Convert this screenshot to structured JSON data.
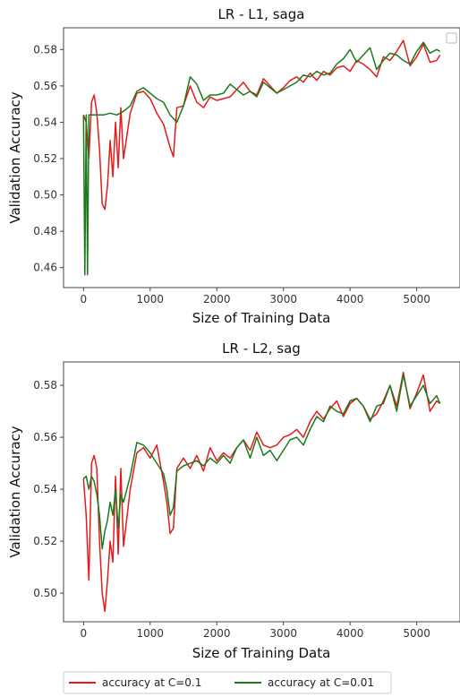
{
  "colors": {
    "series_c01": "#e41a1c",
    "series_c001": "#1b7a1b",
    "axis": "#444444"
  },
  "legend": {
    "placement": "bottom-left, below plots",
    "items": [
      {
        "label": "accuracy at C=0.1",
        "color": "#e41a1c"
      },
      {
        "label": "accuracy at C=0.01",
        "color": "#1b7a1b"
      }
    ]
  },
  "chart_data": [
    {
      "type": "line",
      "title": "LR - L1, saga",
      "xlabel": "Size of Training Data",
      "ylabel": "Validation Accuracy",
      "xlim": [
        -300,
        5650
      ],
      "ylim": [
        0.449,
        0.592
      ],
      "xticks": [
        0,
        1000,
        2000,
        3000,
        4000,
        5000
      ],
      "xtick_labels": [
        "0",
        "1000",
        "2000",
        "3000",
        "4000",
        "5000"
      ],
      "yticks": [
        0.46,
        0.48,
        0.5,
        0.52,
        0.54,
        0.56,
        0.58
      ],
      "ytick_labels": [
        "0.46",
        "0.48",
        "0.50",
        "0.52",
        "0.54",
        "0.56",
        "0.58"
      ],
      "grid": false,
      "has_empty_legend_box": true,
      "series": [
        {
          "name": "accuracy at C=0.1",
          "color": "#e41a1c",
          "x": [
            0,
            40,
            80,
            120,
            160,
            200,
            240,
            280,
            320,
            360,
            400,
            440,
            480,
            520,
            560,
            600,
            700,
            800,
            900,
            1000,
            1100,
            1200,
            1300,
            1350,
            1400,
            1500,
            1600,
            1700,
            1800,
            1900,
            2000,
            2100,
            2200,
            2300,
            2400,
            2500,
            2600,
            2700,
            2800,
            2900,
            3000,
            3100,
            3200,
            3300,
            3400,
            3500,
            3600,
            3700,
            3800,
            3900,
            4000,
            4100,
            4200,
            4300,
            4400,
            4500,
            4600,
            4700,
            4800,
            4900,
            5000,
            5100,
            5200,
            5300,
            5350
          ],
          "y": [
            0.544,
            0.54,
            0.52,
            0.551,
            0.555,
            0.545,
            0.525,
            0.495,
            0.492,
            0.505,
            0.53,
            0.51,
            0.54,
            0.515,
            0.548,
            0.52,
            0.545,
            0.556,
            0.557,
            0.553,
            0.545,
            0.539,
            0.526,
            0.521,
            0.548,
            0.549,
            0.56,
            0.551,
            0.548,
            0.554,
            0.552,
            0.553,
            0.554,
            0.558,
            0.562,
            0.557,
            0.555,
            0.564,
            0.56,
            0.556,
            0.559,
            0.563,
            0.565,
            0.562,
            0.567,
            0.563,
            0.568,
            0.566,
            0.57,
            0.571,
            0.568,
            0.574,
            0.572,
            0.569,
            0.565,
            0.576,
            0.574,
            0.579,
            0.585,
            0.571,
            0.576,
            0.583,
            0.573,
            0.574,
            0.577
          ]
        },
        {
          "name": "accuracy at C=0.01",
          "color": "#1b7a1b",
          "x": [
            0,
            20,
            40,
            60,
            80,
            100,
            140,
            200,
            300,
            400,
            500,
            600,
            700,
            800,
            900,
            1000,
            1100,
            1200,
            1300,
            1400,
            1500,
            1600,
            1700,
            1800,
            1900,
            2000,
            2100,
            2200,
            2300,
            2400,
            2500,
            2600,
            2700,
            2800,
            2900,
            3000,
            3100,
            3200,
            3300,
            3400,
            3500,
            3600,
            3700,
            3800,
            3900,
            4000,
            4100,
            4200,
            4300,
            4400,
            4500,
            4600,
            4700,
            4800,
            4900,
            5000,
            5100,
            5200,
            5300,
            5350
          ],
          "y": [
            0.544,
            0.456,
            0.544,
            0.456,
            0.544,
            0.544,
            0.544,
            0.544,
            0.544,
            0.545,
            0.544,
            0.546,
            0.549,
            0.557,
            0.559,
            0.556,
            0.553,
            0.551,
            0.544,
            0.54,
            0.549,
            0.565,
            0.561,
            0.552,
            0.555,
            0.555,
            0.556,
            0.561,
            0.558,
            0.555,
            0.557,
            0.554,
            0.562,
            0.559,
            0.556,
            0.558,
            0.56,
            0.562,
            0.566,
            0.565,
            0.568,
            0.566,
            0.567,
            0.572,
            0.575,
            0.58,
            0.573,
            0.577,
            0.581,
            0.569,
            0.574,
            0.578,
            0.577,
            0.574,
            0.572,
            0.579,
            0.584,
            0.578,
            0.58,
            0.579
          ]
        }
      ]
    },
    {
      "type": "line",
      "title": "LR - L2, sag",
      "xlabel": "Size of Training Data",
      "ylabel": "Validation Accuracy",
      "xlim": [
        -300,
        5650
      ],
      "ylim": [
        0.489,
        0.589
      ],
      "xticks": [
        0,
        1000,
        2000,
        3000,
        4000,
        5000
      ],
      "xtick_labels": [
        "0",
        "1000",
        "2000",
        "3000",
        "4000",
        "5000"
      ],
      "yticks": [
        0.5,
        0.52,
        0.54,
        0.56,
        0.58
      ],
      "ytick_labels": [
        "0.50",
        "0.52",
        "0.54",
        "0.56",
        "0.58"
      ],
      "grid": false,
      "series": [
        {
          "name": "accuracy at C=0.1",
          "color": "#e41a1c",
          "x": [
            0,
            40,
            80,
            120,
            160,
            200,
            240,
            280,
            320,
            360,
            400,
            440,
            480,
            520,
            560,
            600,
            700,
            800,
            900,
            1000,
            1100,
            1200,
            1250,
            1300,
            1350,
            1400,
            1500,
            1600,
            1700,
            1800,
            1900,
            2000,
            2100,
            2200,
            2300,
            2400,
            2500,
            2600,
            2700,
            2800,
            2900,
            3000,
            3100,
            3200,
            3300,
            3400,
            3500,
            3600,
            3700,
            3800,
            3900,
            4000,
            4100,
            4200,
            4300,
            4400,
            4500,
            4600,
            4700,
            4800,
            4900,
            5000,
            5100,
            5200,
            5300,
            5350
          ],
          "y": [
            0.544,
            0.53,
            0.505,
            0.55,
            0.553,
            0.548,
            0.52,
            0.5,
            0.493,
            0.505,
            0.52,
            0.512,
            0.545,
            0.515,
            0.548,
            0.518,
            0.54,
            0.554,
            0.556,
            0.552,
            0.557,
            0.543,
            0.535,
            0.523,
            0.525,
            0.548,
            0.552,
            0.548,
            0.553,
            0.547,
            0.556,
            0.551,
            0.554,
            0.552,
            0.556,
            0.559,
            0.555,
            0.562,
            0.557,
            0.556,
            0.557,
            0.56,
            0.561,
            0.563,
            0.56,
            0.566,
            0.57,
            0.567,
            0.571,
            0.574,
            0.568,
            0.573,
            0.575,
            0.572,
            0.567,
            0.569,
            0.574,
            0.58,
            0.572,
            0.585,
            0.571,
            0.577,
            0.584,
            0.57,
            0.574,
            0.573
          ]
        },
        {
          "name": "accuracy at C=0.01",
          "color": "#1b7a1b",
          "x": [
            0,
            40,
            80,
            120,
            160,
            200,
            240,
            280,
            320,
            360,
            400,
            440,
            480,
            520,
            560,
            600,
            700,
            800,
            900,
            1000,
            1100,
            1200,
            1250,
            1300,
            1350,
            1400,
            1500,
            1600,
            1700,
            1800,
            1900,
            2000,
            2100,
            2200,
            2300,
            2400,
            2500,
            2600,
            2700,
            2800,
            2900,
            3000,
            3100,
            3200,
            3300,
            3400,
            3500,
            3600,
            3700,
            3800,
            3900,
            4000,
            4100,
            4200,
            4300,
            4400,
            4500,
            4600,
            4700,
            4800,
            4900,
            5000,
            5100,
            5200,
            5300,
            5350
          ],
          "y": [
            0.544,
            0.545,
            0.54,
            0.545,
            0.543,
            0.538,
            0.53,
            0.517,
            0.524,
            0.528,
            0.535,
            0.53,
            0.54,
            0.525,
            0.538,
            0.535,
            0.545,
            0.558,
            0.557,
            0.554,
            0.55,
            0.546,
            0.54,
            0.53,
            0.533,
            0.547,
            0.549,
            0.55,
            0.551,
            0.549,
            0.552,
            0.55,
            0.553,
            0.55,
            0.556,
            0.559,
            0.552,
            0.56,
            0.553,
            0.555,
            0.551,
            0.555,
            0.559,
            0.56,
            0.557,
            0.563,
            0.568,
            0.566,
            0.572,
            0.57,
            0.569,
            0.574,
            0.575,
            0.572,
            0.566,
            0.572,
            0.573,
            0.58,
            0.57,
            0.584,
            0.572,
            0.576,
            0.58,
            0.573,
            0.576,
            0.573
          ]
        }
      ]
    }
  ]
}
